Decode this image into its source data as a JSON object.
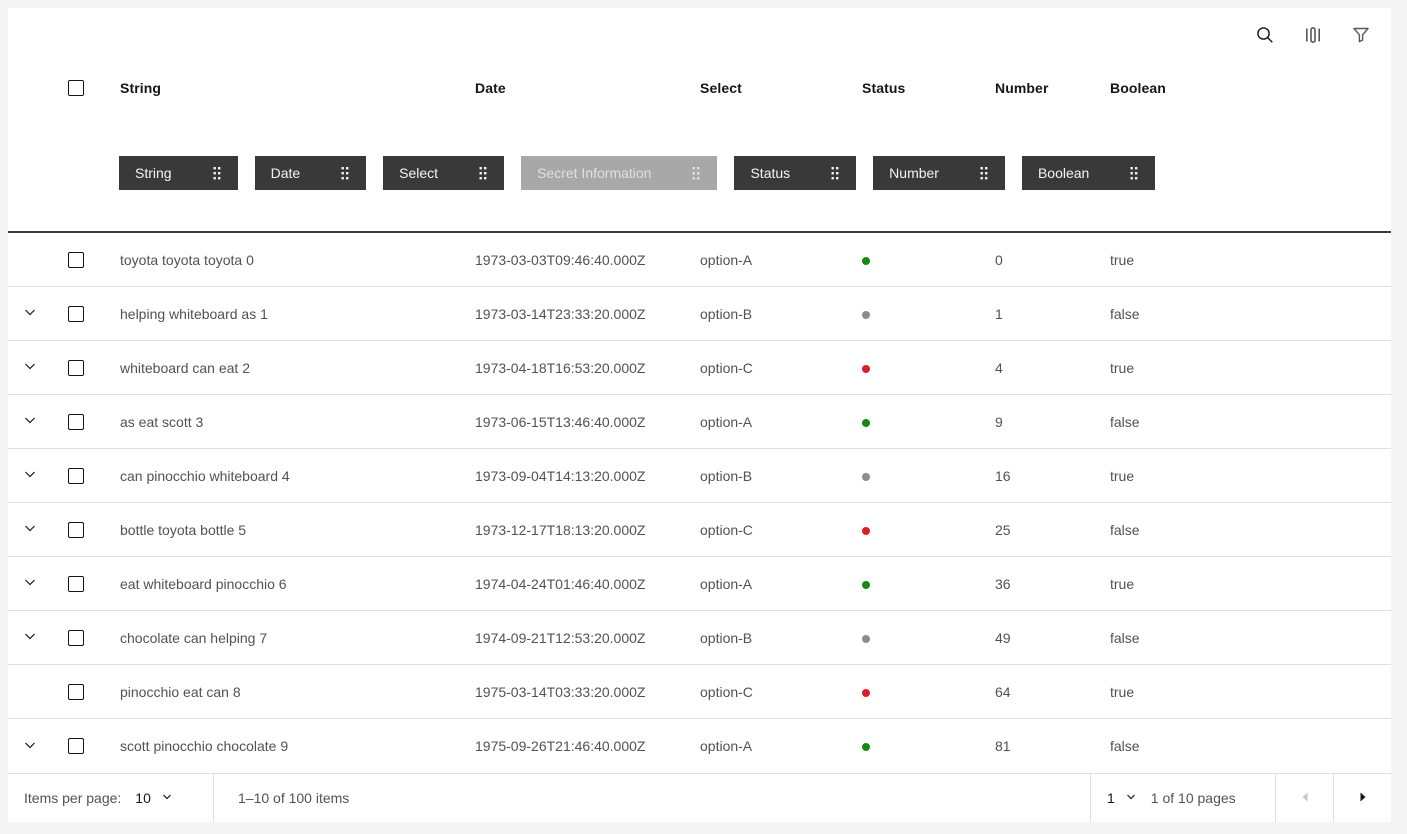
{
  "toolbar": {
    "icons": [
      {
        "name": "search"
      },
      {
        "name": "customize-columns"
      },
      {
        "name": "filter"
      }
    ]
  },
  "table": {
    "columns": [
      "String",
      "Date",
      "Select",
      "Status",
      "Number",
      "Boolean"
    ],
    "chips": [
      {
        "label": "String",
        "disabled": false
      },
      {
        "label": "Date",
        "disabled": false
      },
      {
        "label": "Select",
        "disabled": false
      },
      {
        "label": "Secret Information",
        "disabled": true
      },
      {
        "label": "Status",
        "disabled": false
      },
      {
        "label": "Number",
        "disabled": false
      },
      {
        "label": "Boolean",
        "disabled": false
      }
    ],
    "rows": [
      {
        "expandable": false,
        "string": "toyota toyota toyota 0",
        "date": "1973-03-03T09:46:40.000Z",
        "select": "option-A",
        "status": "green",
        "number": "0",
        "boolean": "true"
      },
      {
        "expandable": true,
        "string": "helping whiteboard as 1",
        "date": "1973-03-14T23:33:20.000Z",
        "select": "option-B",
        "status": "gray",
        "number": "1",
        "boolean": "false"
      },
      {
        "expandable": true,
        "string": "whiteboard can eat 2",
        "date": "1973-04-18T16:53:20.000Z",
        "select": "option-C",
        "status": "red",
        "number": "4",
        "boolean": "true"
      },
      {
        "expandable": true,
        "string": "as eat scott 3",
        "date": "1973-06-15T13:46:40.000Z",
        "select": "option-A",
        "status": "green",
        "number": "9",
        "boolean": "false"
      },
      {
        "expandable": true,
        "string": "can pinocchio whiteboard 4",
        "date": "1973-09-04T14:13:20.000Z",
        "select": "option-B",
        "status": "gray",
        "number": "16",
        "boolean": "true"
      },
      {
        "expandable": true,
        "string": "bottle toyota bottle 5",
        "date": "1973-12-17T18:13:20.000Z",
        "select": "option-C",
        "status": "red",
        "number": "25",
        "boolean": "false"
      },
      {
        "expandable": true,
        "string": "eat whiteboard pinocchio 6",
        "date": "1974-04-24T01:46:40.000Z",
        "select": "option-A",
        "status": "green",
        "number": "36",
        "boolean": "true"
      },
      {
        "expandable": true,
        "string": "chocolate can helping 7",
        "date": "1974-09-21T12:53:20.000Z",
        "select": "option-B",
        "status": "gray",
        "number": "49",
        "boolean": "false"
      },
      {
        "expandable": false,
        "string": "pinocchio eat can 8",
        "date": "1975-03-14T03:33:20.000Z",
        "select": "option-C",
        "status": "red",
        "number": "64",
        "boolean": "true"
      },
      {
        "expandable": true,
        "string": "scott pinocchio chocolate 9",
        "date": "1975-09-26T21:46:40.000Z",
        "select": "option-A",
        "status": "green",
        "number": "81",
        "boolean": "false"
      }
    ]
  },
  "pagination": {
    "items_per_page_label": "Items per page:",
    "items_per_page_value": "10",
    "range_text": "1–10 of 100 items",
    "page_value": "1",
    "page_text": "1 of 10 pages"
  },
  "colors": {
    "status": {
      "green": "#188718",
      "gray": "#8d8d8d",
      "red": "#da1e28"
    },
    "chip_bg": "#393939",
    "chip_disabled_bg": "#a8a8a8",
    "divider": "#3c3c3c",
    "row_border": "#e0e0e0",
    "page_bg": "#f4f4f4"
  }
}
